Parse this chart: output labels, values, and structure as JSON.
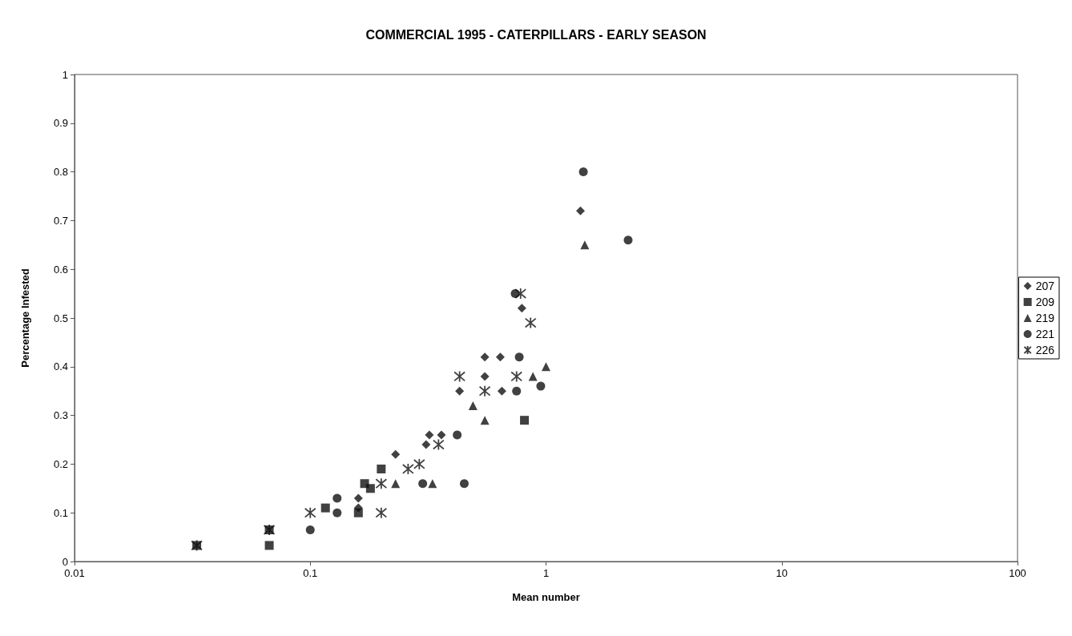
{
  "chart_data": {
    "type": "scatter",
    "title": "COMMERCIAL 1995 - CATERPILLARS - EARLY SEASON",
    "xlabel": "Mean number",
    "ylabel": "Percentage Infested",
    "log": "x",
    "xlim": [
      0.01,
      100
    ],
    "xticks": [
      0.01,
      0.1,
      1,
      10,
      100
    ],
    "ylim": [
      0,
      1
    ],
    "yticks": [
      0,
      0.1,
      0.2,
      0.3,
      0.4,
      0.5,
      0.6,
      0.7,
      0.8,
      0.9,
      1
    ],
    "grid": false,
    "legend": "right",
    "series": [
      {
        "name": "207",
        "color": "#111111",
        "marker": "diamond",
        "x": [
          0.16,
          0.16,
          0.23,
          0.32,
          0.36,
          0.31,
          0.55,
          0.64,
          0.55,
          0.43,
          0.65,
          0.79,
          1.4
        ],
        "values": [
          0.13,
          0.11,
          0.22,
          0.26,
          0.26,
          0.24,
          0.42,
          0.42,
          0.38,
          0.35,
          0.35,
          0.52,
          0.72
        ]
      },
      {
        "name": "209",
        "color": "#111111",
        "marker": "square",
        "x": [
          0.033,
          0.067,
          0.067,
          0.116,
          0.16,
          0.17,
          0.18,
          0.2,
          0.81
        ],
        "values": [
          0.033,
          0.065,
          0.033,
          0.11,
          0.1,
          0.16,
          0.15,
          0.19,
          0.29
        ]
      },
      {
        "name": "219",
        "color": "#111111",
        "marker": "triangle",
        "x": [
          0.23,
          0.33,
          0.49,
          0.55,
          0.88,
          1.0,
          1.46
        ],
        "values": [
          0.16,
          0.16,
          0.32,
          0.29,
          0.38,
          0.4,
          0.65
        ]
      },
      {
        "name": "221",
        "color": "#111111",
        "marker": "circle",
        "x": [
          0.1,
          0.13,
          0.13,
          0.3,
          0.42,
          0.45,
          0.75,
          0.95,
          0.77,
          0.74,
          1.44,
          2.23
        ],
        "values": [
          0.065,
          0.13,
          0.1,
          0.16,
          0.26,
          0.16,
          0.35,
          0.36,
          0.42,
          0.55,
          0.8,
          0.66
        ]
      },
      {
        "name": "226",
        "color": "#111111",
        "marker": "cross",
        "x": [
          0.033,
          0.067,
          0.1,
          0.2,
          0.2,
          0.26,
          0.29,
          0.35,
          0.43,
          0.55,
          0.75,
          0.86,
          0.78
        ],
        "values": [
          0.033,
          0.065,
          0.1,
          0.1,
          0.16,
          0.19,
          0.2,
          0.24,
          0.38,
          0.35,
          0.38,
          0.49,
          0.55
        ]
      }
    ]
  }
}
